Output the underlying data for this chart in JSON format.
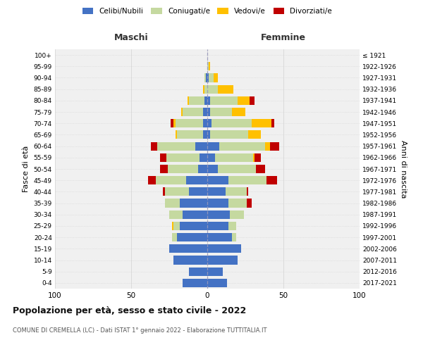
{
  "age_groups": [
    "0-4",
    "5-9",
    "10-14",
    "15-19",
    "20-24",
    "25-29",
    "30-34",
    "35-39",
    "40-44",
    "45-49",
    "50-54",
    "55-59",
    "60-64",
    "65-69",
    "70-74",
    "75-79",
    "80-84",
    "85-89",
    "90-94",
    "95-99",
    "100+"
  ],
  "birth_years": [
    "2017-2021",
    "2012-2016",
    "2007-2011",
    "2002-2006",
    "1997-2001",
    "1992-1996",
    "1987-1991",
    "1982-1986",
    "1977-1981",
    "1972-1976",
    "1967-1971",
    "1962-1966",
    "1957-1961",
    "1952-1956",
    "1947-1951",
    "1942-1946",
    "1937-1941",
    "1932-1936",
    "1927-1931",
    "1922-1926",
    "≤ 1921"
  ],
  "maschi_celibi": [
    16,
    12,
    22,
    25,
    20,
    18,
    16,
    18,
    12,
    14,
    6,
    5,
    8,
    3,
    3,
    3,
    2,
    0,
    1,
    0,
    0
  ],
  "maschi_coniugati": [
    0,
    0,
    0,
    0,
    3,
    4,
    9,
    10,
    16,
    20,
    20,
    22,
    25,
    17,
    18,
    13,
    10,
    2,
    1,
    0,
    0
  ],
  "maschi_vedovi": [
    0,
    0,
    0,
    0,
    0,
    1,
    0,
    0,
    0,
    0,
    0,
    0,
    0,
    1,
    1,
    1,
    1,
    1,
    0,
    0,
    0
  ],
  "maschi_divorziati": [
    0,
    0,
    0,
    0,
    0,
    0,
    0,
    0,
    1,
    5,
    5,
    4,
    4,
    0,
    2,
    0,
    0,
    0,
    0,
    0,
    0
  ],
  "femmine_celibi": [
    13,
    10,
    20,
    22,
    16,
    14,
    15,
    14,
    12,
    14,
    7,
    5,
    8,
    2,
    3,
    2,
    2,
    0,
    1,
    0,
    0
  ],
  "femmine_coniugati": [
    0,
    0,
    0,
    0,
    3,
    5,
    9,
    12,
    14,
    25,
    25,
    25,
    30,
    25,
    26,
    14,
    18,
    7,
    3,
    1,
    0
  ],
  "femmine_vedovi": [
    0,
    0,
    0,
    0,
    0,
    0,
    0,
    0,
    0,
    0,
    0,
    1,
    3,
    8,
    13,
    9,
    8,
    10,
    3,
    1,
    0
  ],
  "femmine_divorziati": [
    0,
    0,
    0,
    0,
    0,
    0,
    0,
    3,
    1,
    7,
    6,
    4,
    6,
    0,
    2,
    0,
    3,
    0,
    0,
    0,
    0
  ],
  "colors": {
    "celibi": "#4472c4",
    "coniugati": "#c5d9a0",
    "vedovi": "#ffc000",
    "divorziati": "#c00000"
  },
  "legend_labels": [
    "Celibi/Nubili",
    "Coniugati/e",
    "Vedovi/e",
    "Divorziati/e"
  ],
  "title": "Popolazione per età, sesso e stato civile - 2022",
  "subtitle": "COMUNE DI CREMELLA (LC) - Dati ISTAT 1° gennaio 2022 - Elaborazione TUTTITALIA.IT",
  "xlabel_left": "Maschi",
  "xlabel_right": "Femmine",
  "ylabel_left": "Fasce di età",
  "ylabel_right": "Anni di nascita",
  "xlim": 100,
  "background_color": "#ffffff",
  "axes_bg": "#f0f0f0"
}
